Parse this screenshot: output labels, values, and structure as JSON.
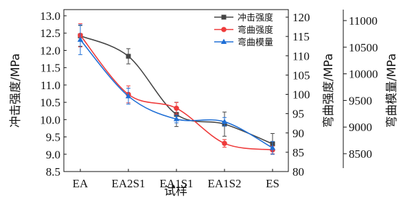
{
  "chart_data": {
    "type": "line",
    "categories": [
      "EA",
      "EA2S1",
      "EA1S1",
      "EA1S2",
      "ES"
    ],
    "xlabel": "试样",
    "axes": {
      "left": {
        "label": "冲击强度/MPa",
        "ylim": [
          8.5,
          13.0
        ],
        "ticks": [
          "8.5",
          "9.0",
          "9.5",
          "10.0",
          "10.5",
          "11.0",
          "11.5",
          "12.0",
          "12.5",
          "13.0"
        ]
      },
      "right1": {
        "label": "弯曲强度/MPa",
        "ylim": [
          80,
          122
        ],
        "ticks": [
          "80",
          "85",
          "90",
          "95",
          "100",
          "105",
          "110",
          "115",
          "120"
        ]
      },
      "right2": {
        "label": "弯曲模量/MPa",
        "ylim": [
          8200,
          11200
        ],
        "ticks": [
          "8500",
          "9000",
          "9500",
          "10000",
          "10500",
          "11000"
        ]
      }
    },
    "series": [
      {
        "name": "冲击强度",
        "axis": "left",
        "color": "#444444",
        "marker": "square",
        "values": [
          12.42,
          11.83,
          10.15,
          9.87,
          9.3
        ],
        "errors": [
          0.3,
          0.22,
          0.35,
          0.35,
          0.3
        ]
      },
      {
        "name": "弯曲强度",
        "axis": "right1",
        "color": "#ee3b3b",
        "marker": "circle",
        "values": [
          115.3,
          100.0,
          96.4,
          87.3,
          85.6
        ],
        "errors": [
          3.0,
          2.2,
          1.5,
          1.0,
          1.0
        ]
      },
      {
        "name": "弯曲模量",
        "axis": "right2",
        "color": "#1f6fd6",
        "marker": "triangle",
        "values": [
          10640,
          9580,
          9150,
          9100,
          8610
        ],
        "errors": [
          280,
          150,
          70,
          80,
          120
        ]
      }
    ],
    "legend_position": "top-right"
  }
}
